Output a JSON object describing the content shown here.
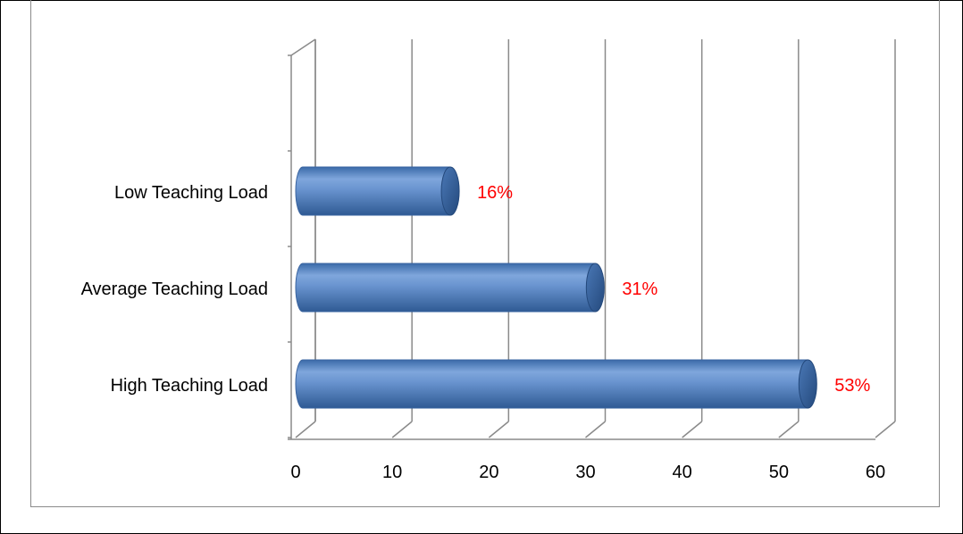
{
  "chart_data": {
    "type": "bar",
    "orientation": "horizontal",
    "style": "3d-cylinder",
    "categories": [
      "Low Teaching Load",
      "Average Teaching Load",
      "High Teaching Load"
    ],
    "values": [
      16,
      31,
      53
    ],
    "data_labels": [
      "16%",
      "31%",
      "53%"
    ],
    "xlim": [
      0,
      60
    ],
    "xticks": [
      "0",
      "10",
      "20",
      "30",
      "40",
      "50",
      "60"
    ],
    "title": "",
    "xlabel": "",
    "ylabel": "",
    "grid": true,
    "legend": false,
    "colors": {
      "bar": "#4f81bd",
      "bar_light": "#95b3d7",
      "bar_dark": "#2e5c94",
      "data_label": "#ff0000",
      "grid": "#8a8a8a"
    }
  }
}
